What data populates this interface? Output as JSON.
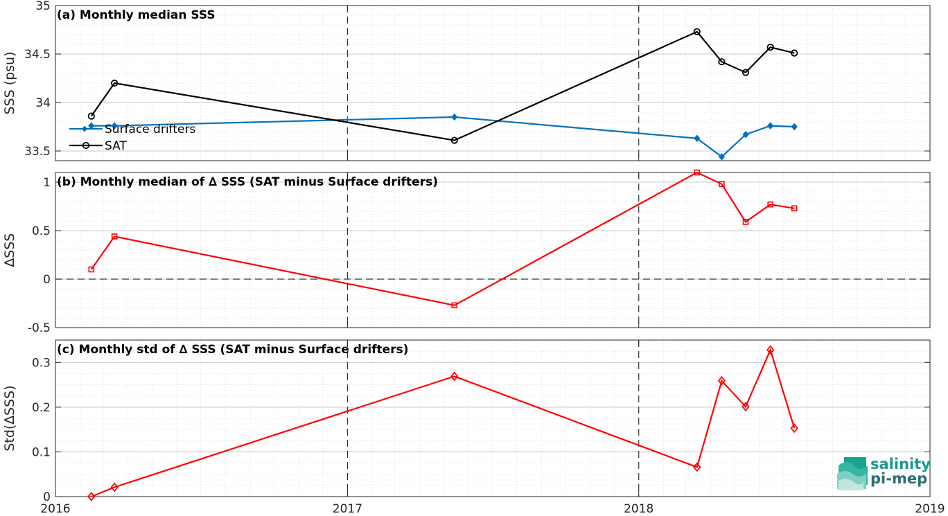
{
  "chart_data": [
    {
      "type": "line",
      "title": "(a) Monthly median SSS",
      "ylabel": "SSS (psu)",
      "ylim": [
        33.4,
        35
      ],
      "yticks": [
        "33.5",
        "34",
        "34.5",
        "35"
      ],
      "xlim": [
        "2016-01-01",
        "2019-01-01"
      ],
      "grid": true,
      "legend_position": "bottom-left",
      "series": [
        {
          "name": "Surface drifters",
          "color": "#0072BD",
          "marker": "diamond-filled",
          "x": [
            "2016-02-15",
            "2016-03-15",
            "2017-05-15",
            "2018-03-15",
            "2018-04-15",
            "2018-05-15",
            "2018-06-15",
            "2018-07-15"
          ],
          "values": [
            33.76,
            33.76,
            33.85,
            33.63,
            33.44,
            33.67,
            33.76,
            33.75
          ]
        },
        {
          "name": "SAT",
          "color": "#000000",
          "marker": "circle-open",
          "x": [
            "2016-02-15",
            "2016-03-15",
            "2017-05-15",
            "2018-03-15",
            "2018-04-15",
            "2018-05-15",
            "2018-06-15",
            "2018-07-15"
          ],
          "values": [
            33.86,
            34.2,
            33.61,
            34.73,
            34.42,
            34.31,
            34.57,
            34.51
          ]
        }
      ]
    },
    {
      "type": "line",
      "title": "(b) Monthly median of ∆ SSS (SAT minus Surface drifters)",
      "ylabel": "∆SSS",
      "ylim": [
        -0.5,
        1.1
      ],
      "yticks": [
        "-0.5",
        "0",
        "0.5",
        "1"
      ],
      "xlim": [
        "2016-01-01",
        "2019-01-01"
      ],
      "grid": true,
      "series": [
        {
          "color": "#FF0000",
          "marker": "square-open",
          "x": [
            "2016-02-15",
            "2016-03-15",
            "2017-05-15",
            "2018-03-15",
            "2018-04-15",
            "2018-05-15",
            "2018-06-15",
            "2018-07-15"
          ],
          "values": [
            0.1,
            0.44,
            -0.27,
            1.1,
            0.98,
            0.59,
            0.77,
            0.73
          ]
        }
      ]
    },
    {
      "type": "line",
      "title": "(c) Monthly std of ∆ SSS (SAT minus Surface drifters)",
      "ylabel": "Std(∆SSS)",
      "ylim": [
        0,
        0.35
      ],
      "yticks": [
        "0",
        "0.1",
        "0.2",
        "0.3"
      ],
      "xlim": [
        "2016-01-01",
        "2019-01-01"
      ],
      "xticks": [
        "2016",
        "2017",
        "2018",
        "2019"
      ],
      "grid": true,
      "series": [
        {
          "color": "#FF0000",
          "marker": "diamond-open",
          "x": [
            "2016-02-15",
            "2016-03-15",
            "2017-05-15",
            "2018-03-15",
            "2018-04-15",
            "2018-05-15",
            "2018-06-15",
            "2018-07-15"
          ],
          "values": [
            0.0,
            0.021,
            0.269,
            0.066,
            0.259,
            0.201,
            0.328,
            0.153
          ]
        }
      ]
    }
  ],
  "logo": {
    "line1": "salinity",
    "line2": "pi-mep"
  }
}
